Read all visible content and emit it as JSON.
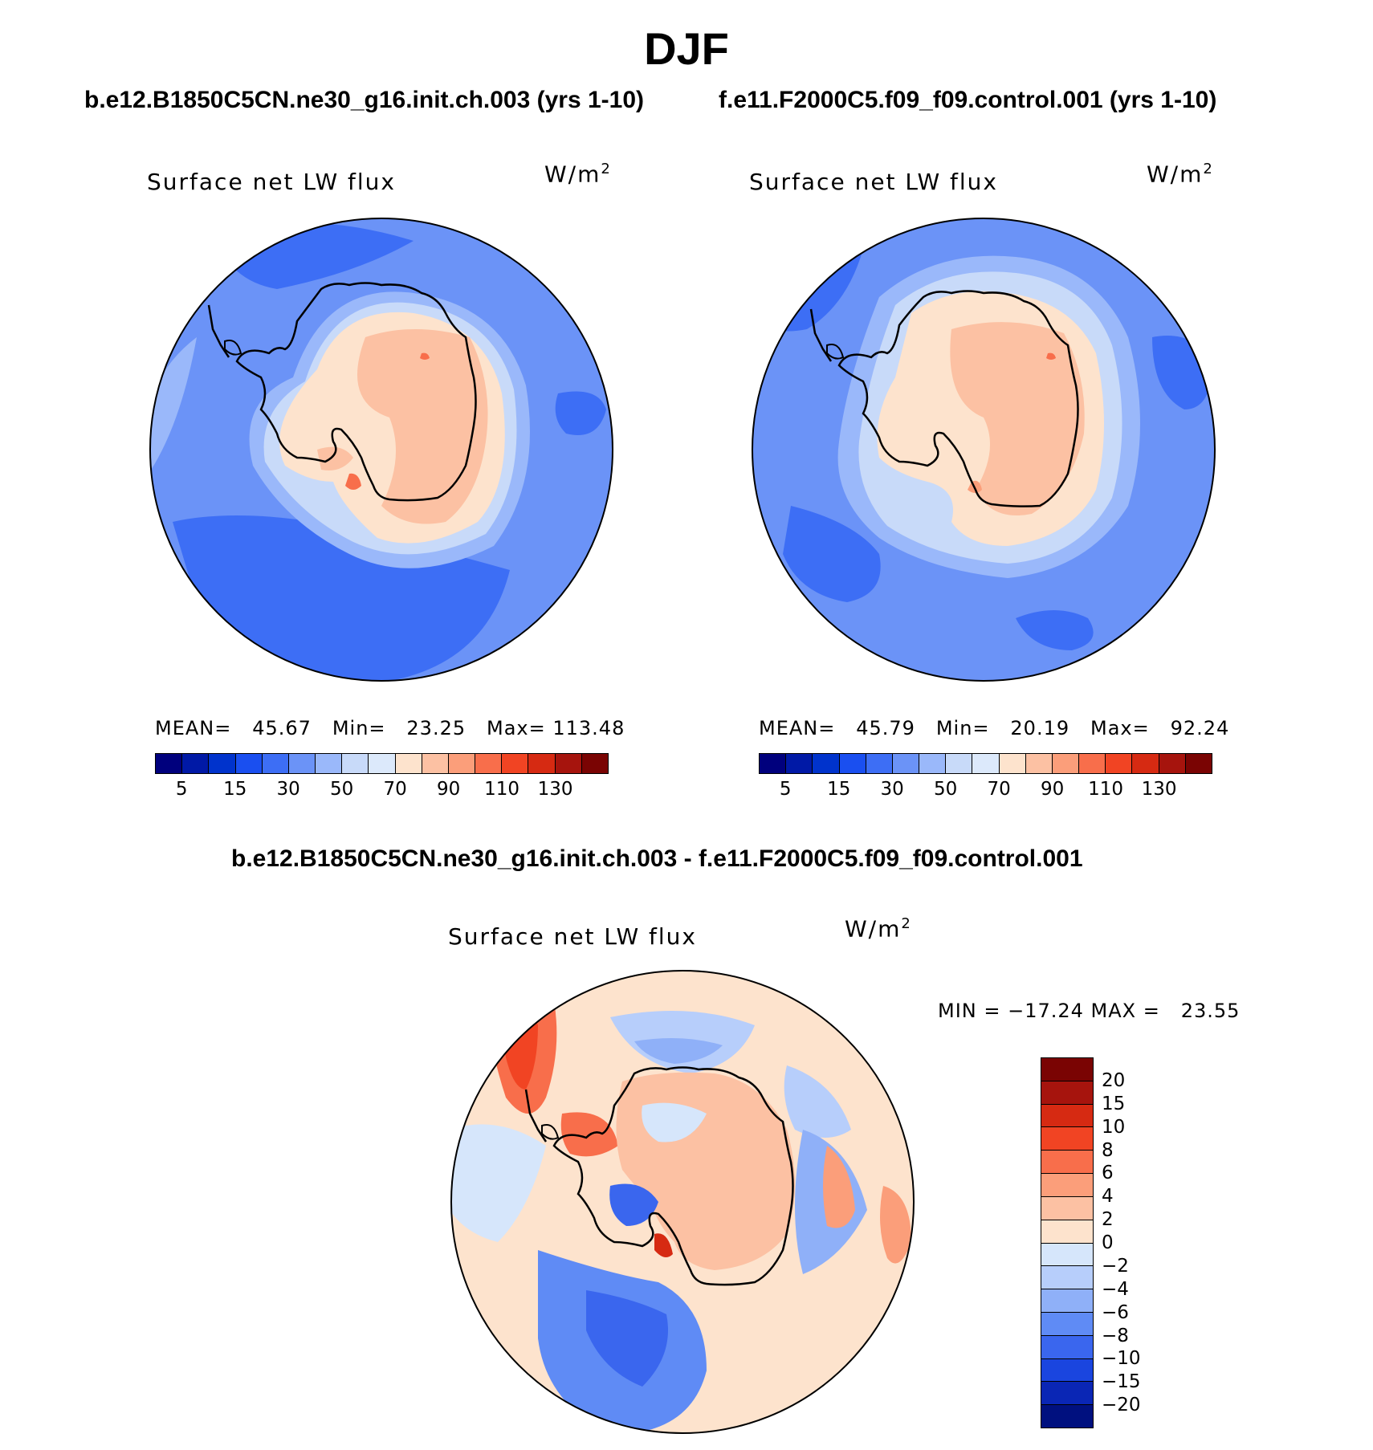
{
  "figure_title": "DJF",
  "left_panel": {
    "case_title": "b.e12.B1850C5CN.ne30_g16.init.ch.003 (yrs 1-10)",
    "variable": "Surface net LW flux",
    "units": "W/m",
    "units_exp": "2",
    "stats": "MEAN=   45.67   Min=   23.25   Max= 113.48",
    "colorbar_ticks": [
      "5",
      "15",
      "30",
      "50",
      "70",
      "90",
      "110",
      "130"
    ]
  },
  "right_panel": {
    "case_title": "f.e11.F2000C5.f09_f09.control.001 (yrs 1-10)",
    "variable": "Surface net LW flux",
    "units": "W/m",
    "units_exp": "2",
    "stats": "MEAN=   45.79   Min=   20.19   Max=   92.24",
    "colorbar_ticks": [
      "5",
      "15",
      "30",
      "50",
      "70",
      "90",
      "110",
      "130"
    ]
  },
  "diff_panel": {
    "case_title": "b.e12.B1850C5CN.ne30_g16.init.ch.003 - f.e11.F2000C5.f09_f09.control.001",
    "variable": "Surface net LW flux",
    "units": "W/m",
    "units_exp": "2",
    "stats": "MIN = −17.24 MAX =   23.55",
    "colorbar_ticks": [
      "20",
      "15",
      "10",
      "8",
      "6",
      "4",
      "2",
      "0",
      "−2",
      "−4",
      "−6",
      "−8",
      "−10",
      "−15",
      "−20"
    ]
  },
  "colors": {
    "abs_scale": [
      "#00007d",
      "#0019a6",
      "#0033cc",
      "#1a4ff0",
      "#3d6ef5",
      "#6b93f7",
      "#9ab8fa",
      "#c8daf9",
      "#dce9fb",
      "#fde3cd",
      "#fcc1a3",
      "#fb9e7a",
      "#f86e4b",
      "#f14423",
      "#d62a12",
      "#a6140d",
      "#7a0403"
    ],
    "diff_scale": [
      "#7a0403",
      "#a6140d",
      "#d62a12",
      "#f14423",
      "#f86e4b",
      "#fb9e7a",
      "#fcc1a3",
      "#fde3cd",
      "#d6e6fb",
      "#b7cefb",
      "#8fb0f8",
      "#5f8bf5",
      "#3a66ee",
      "#1a45df",
      "#0a26b5",
      "#00107f"
    ]
  }
}
